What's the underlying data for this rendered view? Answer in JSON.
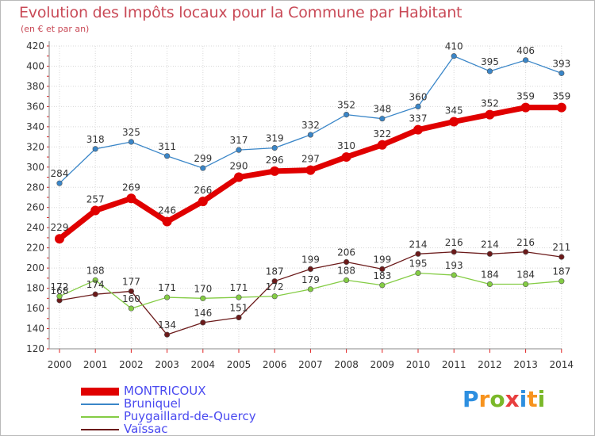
{
  "header": {
    "title": "Evolution des Impôts locaux pour la Commune par Habitant",
    "subtitle": "(en € et par an)"
  },
  "logo": {
    "letters": [
      "P",
      "r",
      "o",
      "x",
      "i",
      "t",
      "i"
    ],
    "colors": [
      "#2d8fe0",
      "#f7931e",
      "#7ab829",
      "#e83e3e",
      "#2d8fe0",
      "#f7931e",
      "#7ab829"
    ]
  },
  "chart_data": {
    "type": "line",
    "x": [
      "2000",
      "2001",
      "2002",
      "2003",
      "2004",
      "2005",
      "2006",
      "2007",
      "2008",
      "2009",
      "2010",
      "2011",
      "2012",
      "2013",
      "2014"
    ],
    "ylim": [
      120,
      420
    ],
    "yticks": [
      120,
      140,
      160,
      180,
      200,
      220,
      240,
      260,
      280,
      300,
      320,
      340,
      360,
      380,
      400,
      420
    ],
    "grid": true,
    "legend_position": "bottom-left",
    "series": [
      {
        "name": "MONTRICOUX",
        "color": "#e00000",
        "values": [
          229,
          257,
          269,
          246,
          266,
          290,
          296,
          297,
          310,
          322,
          337,
          345,
          352,
          359,
          359
        ]
      },
      {
        "name": "Bruniquel",
        "color": "#3a86c8",
        "values": [
          284,
          318,
          325,
          311,
          299,
          317,
          319,
          332,
          352,
          348,
          360,
          410,
          395,
          406,
          393
        ]
      },
      {
        "name": "Puygaillard-de-Quercy",
        "color": "#84cc44",
        "values": [
          172,
          188,
          160,
          171,
          170,
          171,
          172,
          179,
          188,
          183,
          195,
          193,
          184,
          184,
          187
        ]
      },
      {
        "name": "Vaïssac",
        "color": "#6b1a1a",
        "values": [
          168,
          174,
          177,
          134,
          146,
          151,
          187,
          199,
          206,
          199,
          214,
          216,
          214,
          216,
          211
        ]
      }
    ]
  }
}
